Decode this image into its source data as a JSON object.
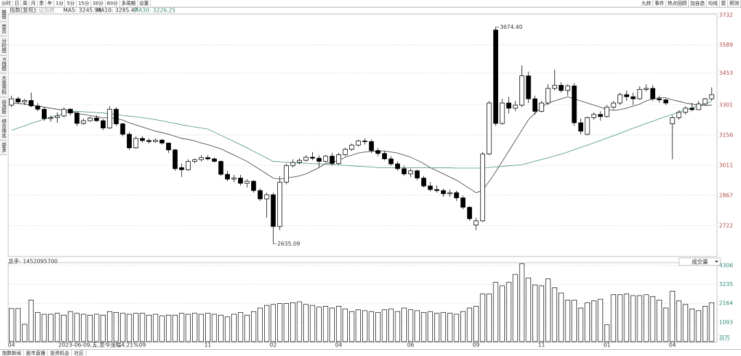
{
  "toolbar": {
    "left": [
      "分时",
      "日",
      "周",
      "月",
      "季",
      "年",
      "1分",
      "5分",
      "15分",
      "30分",
      "60分",
      "多周期",
      "设置"
    ],
    "right": [
      "九转",
      "事件",
      "热点回顾",
      "加自选",
      "均线",
      "箭",
      "预测"
    ]
  },
  "sidebar": [
    "推荐",
    "首页",
    "分时图",
    "K线图",
    "大盘资料",
    "自选股",
    "综合排名",
    "更多"
  ],
  "footer_tabs": [
    "指数新闻",
    "股市直播",
    "投资机会",
    "社区"
  ],
  "chart_data": [
    {
      "type": "candlestick",
      "title": "指数(复权)",
      "subtitle": "上证指数",
      "legend": [
        "MA5: 3245.98",
        "MA10: 3285.47",
        "MA30: 3226.25"
      ],
      "ylim": [
        2577,
        3738
      ],
      "yticks": [
        2722,
        2867,
        3011,
        3156,
        3301,
        3453,
        3589,
        3732
      ],
      "grid": true,
      "up_color": "#000000",
      "down_color": "#000000",
      "open": [
        3300,
        3330,
        3315,
        3322,
        3296,
        3280,
        3235,
        3240,
        3248,
        3280,
        3262,
        3212,
        3225,
        3238,
        3225,
        3190,
        3280,
        3210,
        3160,
        3095,
        3140,
        3130,
        3125,
        3132,
        3118,
        3085,
        3000,
        2990,
        3030,
        3038,
        3048,
        3042,
        3030,
        2968,
        2945,
        2950,
        2925,
        2935,
        2890,
        2850,
        2870,
        2718,
        2930,
        3010,
        3025,
        3035,
        3050,
        3045,
        3030,
        3055,
        3020,
        3062,
        3088,
        3108,
        3128,
        3125,
        3082,
        3068,
        3042,
        3018,
        2995,
        2970,
        2985,
        2950,
        2912,
        2895,
        2890,
        2875,
        2880,
        2855,
        2810,
        2725,
        2745,
        3065,
        3660,
        3212,
        3310,
        3285,
        3300,
        3440,
        3330,
        3270,
        3310,
        3380,
        3395,
        3370,
        3392,
        3215,
        3160,
        3240,
        3255,
        3245,
        3290,
        3310,
        3350,
        3340,
        3330,
        3375,
        3380,
        3330,
        3325,
        3210,
        3240,
        3265,
        3285,
        3278,
        3305,
        3330
      ],
      "high": [
        3345,
        3340,
        3330,
        3360,
        3310,
        3290,
        3250,
        3265,
        3290,
        3285,
        3270,
        3235,
        3245,
        3250,
        3232,
        3295,
        3290,
        3215,
        3170,
        3150,
        3150,
        3140,
        3140,
        3138,
        3120,
        3090,
        3020,
        3040,
        3045,
        3060,
        3060,
        3048,
        3035,
        2985,
        2965,
        2965,
        2945,
        2940,
        2900,
        2880,
        2880,
        2960,
        3020,
        3040,
        3045,
        3060,
        3075,
        3060,
        3060,
        3070,
        3070,
        3095,
        3115,
        3135,
        3140,
        3135,
        3095,
        3080,
        3055,
        3030,
        3010,
        2995,
        2990,
        2960,
        2930,
        2915,
        2900,
        2895,
        2890,
        2865,
        2815,
        2760,
        3075,
        3320,
        3674.4,
        3330,
        3340,
        3320,
        3490,
        3460,
        3345,
        3320,
        3400,
        3470,
        3410,
        3400,
        3405,
        3235,
        3245,
        3265,
        3270,
        3300,
        3320,
        3360,
        3370,
        3360,
        3390,
        3400,
        3395,
        3345,
        3330,
        3250,
        3275,
        3295,
        3310,
        3320,
        3335,
        3385
      ],
      "low": [
        3290,
        3305,
        3300,
        3290,
        3270,
        3225,
        3220,
        3215,
        3240,
        3250,
        3200,
        3205,
        3220,
        3220,
        3180,
        3185,
        3200,
        3150,
        3085,
        3090,
        3120,
        3115,
        3120,
        3110,
        3070,
        2985,
        2955,
        2985,
        3020,
        3030,
        3035,
        3025,
        2960,
        2935,
        2930,
        2915,
        2905,
        2880,
        2840,
        2760,
        2635.09,
        2700,
        2920,
        3000,
        3015,
        3030,
        3035,
        3000,
        3025,
        3010,
        3015,
        3055,
        3080,
        3100,
        3110,
        3070,
        3055,
        3035,
        3010,
        2985,
        2960,
        2955,
        2940,
        2905,
        2885,
        2880,
        2860,
        2860,
        2840,
        2800,
        2745,
        2700,
        2740,
        3060,
        3200,
        3205,
        3260,
        3270,
        3290,
        3310,
        3255,
        3265,
        3300,
        3370,
        3360,
        3345,
        3200,
        3160,
        3155,
        3230,
        3225,
        3240,
        3280,
        3300,
        3320,
        3300,
        3325,
        3365,
        3320,
        3310,
        3300,
        3040,
        3230,
        3255,
        3270,
        3275,
        3300,
        3320
      ],
      "close": [
        3330,
        3315,
        3322,
        3296,
        3280,
        3235,
        3240,
        3248,
        3280,
        3262,
        3212,
        3225,
        3238,
        3225,
        3190,
        3280,
        3210,
        3160,
        3095,
        3140,
        3130,
        3125,
        3132,
        3118,
        3085,
        2995,
        2990,
        3030,
        3038,
        3048,
        3042,
        3030,
        2968,
        2945,
        2950,
        2925,
        2935,
        2890,
        2850,
        2870,
        2718,
        2930,
        3010,
        3025,
        3035,
        3050,
        3045,
        3030,
        3055,
        3020,
        3062,
        3088,
        3108,
        3128,
        3125,
        3082,
        3068,
        3042,
        3018,
        2995,
        2970,
        2985,
        2950,
        2912,
        2895,
        2890,
        2875,
        2880,
        2855,
        2810,
        2755,
        2745,
        3065,
        3310,
        3212,
        3310,
        3285,
        3300,
        3440,
        3330,
        3270,
        3310,
        3380,
        3395,
        3370,
        3392,
        3215,
        3175,
        3240,
        3255,
        3245,
        3290,
        3310,
        3350,
        3340,
        3330,
        3375,
        3380,
        3330,
        3325,
        3310,
        3240,
        3265,
        3285,
        3278,
        3305,
        3330,
        3350
      ],
      "series": [
        {
          "color": "#333333",
          "values": [
            3310,
            3308,
            3305,
            3300,
            3295,
            3290,
            3285,
            3280,
            3275,
            3272,
            3260,
            3255,
            3250,
            3245,
            3238,
            3240,
            3235,
            3228,
            3215,
            3205,
            3195,
            3185,
            3175,
            3168,
            3160,
            3150,
            3140,
            3135,
            3128,
            3118,
            3110,
            3100,
            3090,
            3075,
            3060,
            3045,
            3030,
            3010,
            2990,
            2970,
            2950,
            2945,
            2950,
            2955,
            2960,
            2970,
            2985,
            3000,
            3020,
            3025,
            3035,
            3050,
            3060,
            3070,
            3075,
            3078,
            3080,
            3080,
            3075,
            3070,
            3060,
            3050,
            3035,
            3020,
            3000,
            2985,
            2970,
            2955,
            2940,
            2920,
            2900,
            2880,
            2890,
            2935,
            2980,
            3030,
            3080,
            3130,
            3180,
            3230,
            3260,
            3290,
            3310,
            3320,
            3330,
            3340,
            3330,
            3320,
            3310,
            3300,
            3290,
            3280,
            3275,
            3278,
            3285,
            3295,
            3305,
            3320,
            3330,
            3335,
            3335,
            3325,
            3318,
            3310,
            3305,
            3300,
            3298,
            3300
          ]
        },
        {
          "color": "#3d8f72",
          "values": [
            3179,
            3190,
            3200,
            3212,
            3222,
            3232,
            3242,
            3250,
            3260,
            3270,
            3270,
            3268,
            3266,
            3264,
            3262,
            3258,
            3255,
            3250,
            3247,
            3243,
            3240,
            3235,
            3230,
            3225,
            3218,
            3212,
            3206,
            3200,
            3195,
            3190,
            3185,
            3170,
            3155,
            3140,
            3125,
            3110,
            3095,
            3078,
            3062,
            3046,
            3030,
            3028,
            3026,
            3024,
            3022,
            3021,
            3019,
            3018,
            3016,
            3015,
            3013,
            3011,
            3009,
            3007,
            3005,
            3003,
            3000,
            3000,
            3000,
            3000,
            3000,
            3000,
            3000,
            3000,
            2999,
            2999,
            2999,
            2999,
            2998,
            2998,
            2998,
            2998,
            2998,
            3001,
            3003,
            3006,
            3009,
            3011,
            3014,
            3022,
            3031,
            3039,
            3047,
            3056,
            3064,
            3075,
            3086,
            3097,
            3108,
            3119,
            3130,
            3142,
            3153,
            3165,
            3177,
            3189,
            3200,
            3212,
            3223,
            3234,
            3245,
            3256,
            3267,
            3277,
            3287,
            3297,
            3307,
            3317
          ]
        }
      ],
      "annotations": [
        {
          "value": 3674.4,
          "label": "3674.40"
        },
        {
          "value": 2635.09,
          "label": "2635.09"
        }
      ]
    },
    {
      "type": "bar",
      "title": "总手: 1452095700",
      "selector": "成交量",
      "annotation": "2023-06-09,五,至今涨幅4.21%",
      "color": "#000000",
      "categories": [
        "04",
        null,
        null,
        null,
        null,
        null,
        null,
        null,
        null,
        null,
        null,
        null,
        null,
        null,
        null,
        null,
        null,
        null,
        null,
        null,
        "09",
        null,
        null,
        null,
        null,
        null,
        null,
        null,
        null,
        null,
        "11",
        null,
        null,
        null,
        null,
        null,
        null,
        null,
        null,
        null,
        "02",
        null,
        null,
        null,
        null,
        null,
        null,
        null,
        null,
        null,
        "04",
        null,
        null,
        null,
        null,
        null,
        null,
        null,
        null,
        null,
        null,
        "06",
        null,
        null,
        null,
        null,
        null,
        null,
        null,
        null,
        null,
        "09",
        null,
        null,
        null,
        null,
        null,
        null,
        null,
        null,
        null,
        "11",
        null,
        null,
        null,
        null,
        null,
        null,
        null,
        null,
        null,
        "01",
        null,
        null,
        null,
        null,
        null,
        null,
        null,
        null,
        null,
        "04",
        null,
        null,
        null,
        null,
        null,
        null
      ],
      "values": [
        1870,
        1870,
        980,
        2350,
        1650,
        1550,
        1550,
        1600,
        1500,
        1700,
        1600,
        1550,
        1500,
        1550,
        1500,
        1700,
        1650,
        1600,
        1550,
        1600,
        1600,
        1500,
        1550,
        1450,
        1500,
        1500,
        1600,
        1550,
        1600,
        1550,
        1600,
        1550,
        1500,
        1400,
        1550,
        1650,
        1500,
        1700,
        1900,
        2050,
        2100,
        2150,
        2150,
        2200,
        2250,
        2100,
        2050,
        1950,
        2000,
        1900,
        2000,
        1850,
        1700,
        1800,
        1750,
        1700,
        1650,
        1800,
        1850,
        1700,
        1900,
        1800,
        1750,
        1650,
        1700,
        1600,
        1650,
        1600,
        1550,
        1700,
        1900,
        2000,
        2700,
        2700,
        3350,
        3150,
        3350,
        3800,
        4400,
        3600,
        3200,
        3150,
        3550,
        3050,
        2750,
        2350,
        2350,
        1900,
        2200,
        2300,
        2400,
        950,
        2650,
        2650,
        2700,
        2600,
        2600,
        2650,
        2550,
        2350,
        1900,
        2850,
        2300,
        2100,
        1850,
        1750,
        2000,
        2200
      ],
      "ylim": [
        0,
        4460
      ],
      "yticks": [
        {
          "value": 0,
          "label": "百万"
        },
        1093,
        2164,
        3235,
        4306
      ],
      "grid": true
    }
  ]
}
